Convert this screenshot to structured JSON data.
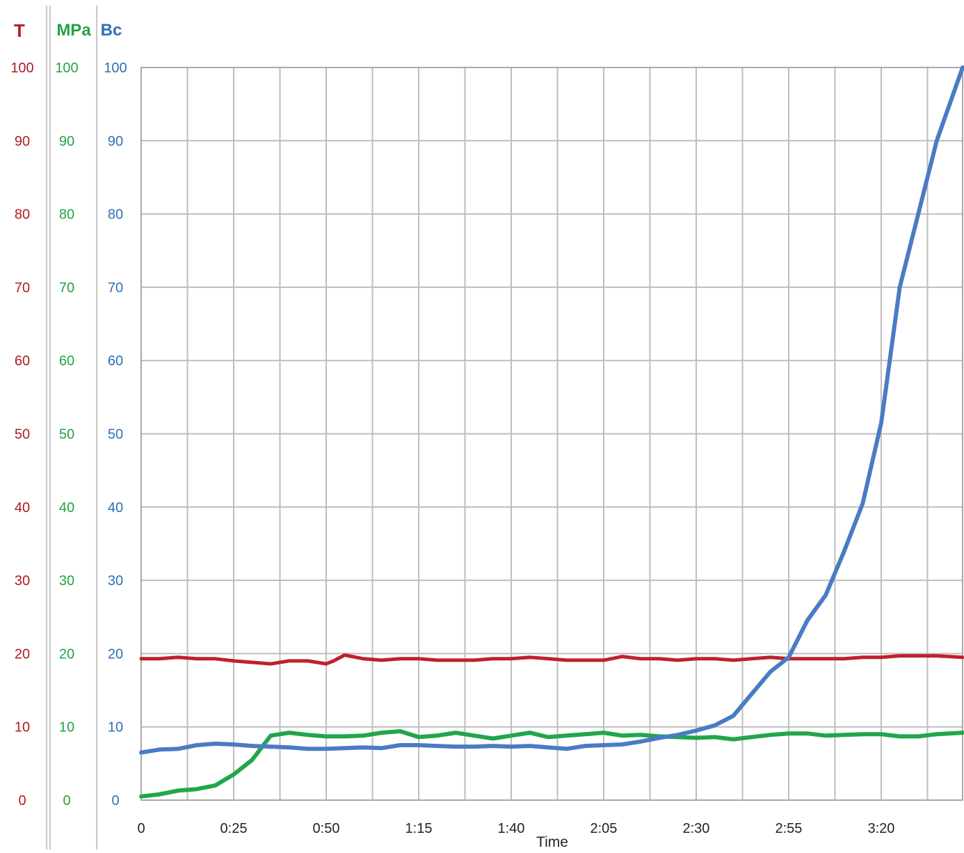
{
  "chart_data": {
    "type": "line",
    "xlabel": "Time",
    "x_tick_labels": [
      "0",
      "0:25",
      "0:50",
      "1:15",
      "1:40",
      "2:05",
      "2:30",
      "2:55",
      "3:20"
    ],
    "x_tick_minutes": [
      0,
      25,
      50,
      75,
      100,
      125,
      150,
      175,
      200
    ],
    "xlim_minutes": [
      0,
      222
    ],
    "grid": true,
    "axes": [
      {
        "id": "T",
        "title": "T",
        "color": "#b01c22",
        "ylim": [
          0,
          100
        ],
        "ticks": [
          "0",
          "10",
          "20",
          "30",
          "40",
          "50",
          "60",
          "70",
          "80",
          "90",
          "100"
        ]
      },
      {
        "id": "MPa",
        "title": "MPa",
        "color": "#21a345",
        "ylim": [
          0,
          100
        ],
        "ticks": [
          "0",
          "10",
          "20",
          "30",
          "40",
          "50",
          "60",
          "70",
          "80",
          "90",
          "100"
        ]
      },
      {
        "id": "Bc",
        "title": "Bc",
        "color": "#2e6fb4",
        "ylim": [
          0,
          100
        ],
        "ticks": [
          "0",
          "10",
          "20",
          "30",
          "40",
          "50",
          "60",
          "70",
          "80",
          "90",
          "100"
        ]
      }
    ],
    "series": [
      {
        "axis": "T",
        "color": "#c0212a",
        "x": [
          0,
          5,
          10,
          15,
          20,
          25,
          30,
          35,
          40,
          45,
          50,
          52,
          55,
          60,
          65,
          70,
          75,
          80,
          85,
          90,
          95,
          100,
          105,
          110,
          115,
          120,
          125,
          130,
          135,
          140,
          145,
          150,
          155,
          160,
          165,
          170,
          175,
          180,
          185,
          190,
          195,
          200,
          205,
          210,
          215,
          222
        ],
        "y": [
          19.3,
          19.3,
          19.5,
          19.3,
          19.3,
          19.0,
          18.8,
          18.6,
          19.0,
          19.0,
          18.6,
          19.0,
          19.8,
          19.3,
          19.1,
          19.3,
          19.3,
          19.1,
          19.1,
          19.1,
          19.3,
          19.3,
          19.5,
          19.3,
          19.1,
          19.1,
          19.1,
          19.6,
          19.3,
          19.3,
          19.1,
          19.3,
          19.3,
          19.1,
          19.3,
          19.5,
          19.3,
          19.3,
          19.3,
          19.3,
          19.5,
          19.5,
          19.7,
          19.7,
          19.7,
          19.5
        ]
      },
      {
        "axis": "MPa",
        "color": "#21a64a",
        "x": [
          0,
          5,
          10,
          15,
          20,
          25,
          30,
          35,
          40,
          45,
          50,
          55,
          60,
          65,
          70,
          75,
          80,
          85,
          90,
          95,
          100,
          105,
          110,
          115,
          120,
          125,
          130,
          135,
          140,
          145,
          150,
          155,
          160,
          165,
          170,
          175,
          180,
          185,
          190,
          195,
          200,
          205,
          210,
          215,
          222
        ],
        "y": [
          0.5,
          0.8,
          1.3,
          1.5,
          2.0,
          3.5,
          5.5,
          8.8,
          9.2,
          8.9,
          8.7,
          8.7,
          8.8,
          9.2,
          9.4,
          8.6,
          8.8,
          9.2,
          8.8,
          8.4,
          8.8,
          9.2,
          8.6,
          8.8,
          9.0,
          9.2,
          8.8,
          8.9,
          8.7,
          8.6,
          8.5,
          8.6,
          8.3,
          8.6,
          8.9,
          9.1,
          9.1,
          8.8,
          8.9,
          9.0,
          9.0,
          8.7,
          8.7,
          9.0,
          9.2
        ]
      },
      {
        "axis": "Bc",
        "color": "#4a7bc4",
        "x": [
          0,
          5,
          10,
          15,
          20,
          25,
          30,
          35,
          40,
          45,
          50,
          55,
          60,
          65,
          70,
          75,
          80,
          85,
          90,
          95,
          100,
          105,
          110,
          115,
          120,
          125,
          130,
          135,
          140,
          145,
          150,
          155,
          160,
          165,
          170,
          175,
          180,
          185,
          190,
          195,
          200,
          205,
          210,
          215,
          222
        ],
        "y": [
          6.5,
          6.9,
          7.0,
          7.5,
          7.7,
          7.6,
          7.4,
          7.3,
          7.2,
          7.0,
          7.0,
          7.1,
          7.2,
          7.1,
          7.5,
          7.5,
          7.4,
          7.3,
          7.3,
          7.4,
          7.3,
          7.4,
          7.2,
          7.0,
          7.4,
          7.5,
          7.6,
          8.0,
          8.5,
          8.9,
          9.5,
          10.2,
          11.5,
          14.5,
          17.5,
          19.5,
          24.5,
          28.0,
          34.0,
          40.5,
          51.5,
          70.0,
          80.0,
          90.0,
          100.0
        ]
      }
    ]
  }
}
